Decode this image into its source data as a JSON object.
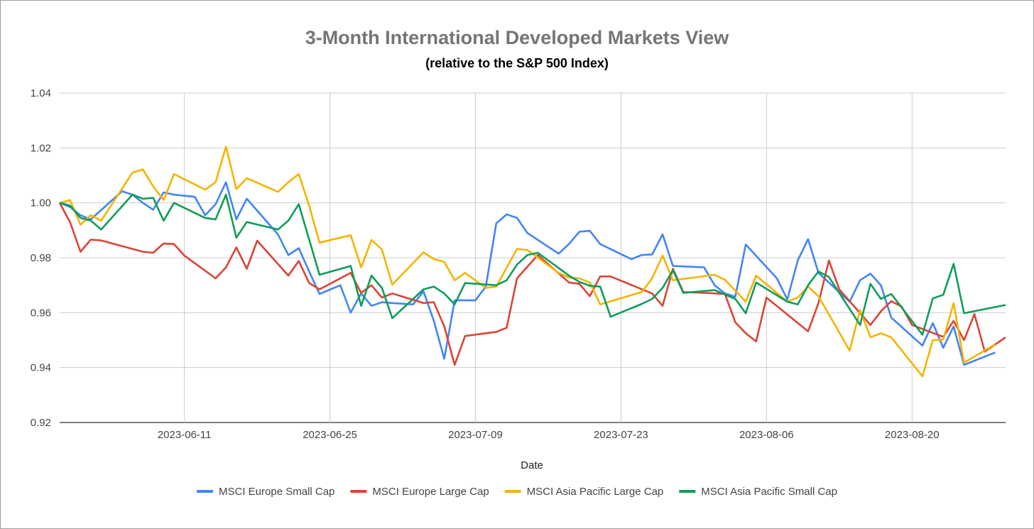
{
  "chart_data": {
    "type": "line",
    "title": "3-Month International Developed Markets View",
    "subtitle": "(relative to the S&P 500 Index)",
    "xlabel": "Date",
    "ylabel": "",
    "ylim": [
      0.92,
      1.04
    ],
    "y_ticks": [
      "0.92",
      "0.94",
      "0.96",
      "0.98",
      "1.00",
      "1.02",
      "1.04"
    ],
    "x_ticks": [
      "2023-06-11",
      "2023-06-25",
      "2023-07-09",
      "2023-07-23",
      "2023-08-06",
      "2023-08-20"
    ],
    "x_start": "2023-05-30",
    "x_end": "2023-08-29",
    "grid": true,
    "legend_position": "bottom",
    "colors": {
      "MSCI Europe Small Cap": "#4285f4",
      "MSCI Europe Large Cap": "#db4437",
      "MSCI Asia Pacific Large Cap": "#f4b400",
      "MSCI Asia Pacific Small Cap": "#0f9d58"
    },
    "series": [
      {
        "name": "MSCI Europe Small Cap",
        "points": [
          [
            "2023-05-30",
            1.0
          ],
          [
            "2023-05-31",
            0.9985
          ],
          [
            "2023-06-01",
            0.9955
          ],
          [
            "2023-06-02",
            0.994
          ],
          [
            "2023-06-05",
            1.0042
          ],
          [
            "2023-06-06",
            1.003
          ],
          [
            "2023-06-07",
            1.0
          ],
          [
            "2023-06-08",
            0.9975
          ],
          [
            "2023-06-09",
            1.0038
          ],
          [
            "2023-06-10",
            1.003
          ],
          [
            "2023-06-12",
            1.0022
          ],
          [
            "2023-06-13",
            0.9955
          ],
          [
            "2023-06-14",
            0.9995
          ],
          [
            "2023-06-15",
            1.0075
          ],
          [
            "2023-06-16",
            0.994
          ],
          [
            "2023-06-17",
            1.0015
          ],
          [
            "2023-06-20",
            0.9885
          ],
          [
            "2023-06-21",
            0.981
          ],
          [
            "2023-06-22",
            0.9835
          ],
          [
            "2023-06-23",
            0.975
          ],
          [
            "2023-06-24",
            0.9668
          ],
          [
            "2023-06-26",
            0.97
          ],
          [
            "2023-06-27",
            0.96
          ],
          [
            "2023-06-28",
            0.967
          ],
          [
            "2023-06-29",
            0.9625
          ],
          [
            "2023-06-30",
            0.9638
          ],
          [
            "2023-07-01",
            0.9635
          ],
          [
            "2023-07-03",
            0.963
          ],
          [
            "2023-07-04",
            0.9678
          ],
          [
            "2023-07-05",
            0.957
          ],
          [
            "2023-07-06",
            0.9432
          ],
          [
            "2023-07-07",
            0.9645
          ],
          [
            "2023-07-09",
            0.9645
          ],
          [
            "2023-07-10",
            0.9695
          ],
          [
            "2023-07-11",
            0.9925
          ],
          [
            "2023-07-12",
            0.9958
          ],
          [
            "2023-07-13",
            0.9945
          ],
          [
            "2023-07-14",
            0.989
          ],
          [
            "2023-07-17",
            0.9815
          ],
          [
            "2023-07-18",
            0.985
          ],
          [
            "2023-07-19",
            0.9895
          ],
          [
            "2023-07-20",
            0.9898
          ],
          [
            "2023-07-21",
            0.985
          ],
          [
            "2023-07-24",
            0.9795
          ],
          [
            "2023-07-25",
            0.981
          ],
          [
            "2023-07-26",
            0.9812
          ],
          [
            "2023-07-27",
            0.9885
          ],
          [
            "2023-07-28",
            0.977
          ],
          [
            "2023-07-31",
            0.9765
          ],
          [
            "2023-08-01",
            0.97
          ],
          [
            "2023-08-02",
            0.967
          ],
          [
            "2023-08-03",
            0.9658
          ],
          [
            "2023-08-04",
            0.9848
          ],
          [
            "2023-08-07",
            0.9725
          ],
          [
            "2023-08-08",
            0.9648
          ],
          [
            "2023-08-09",
            0.979
          ],
          [
            "2023-08-10",
            0.9868
          ],
          [
            "2023-08-11",
            0.9745
          ],
          [
            "2023-08-14",
            0.964
          ],
          [
            "2023-08-15",
            0.9718
          ],
          [
            "2023-08-16",
            0.9742
          ],
          [
            "2023-08-17",
            0.97
          ],
          [
            "2023-08-18",
            0.9582
          ],
          [
            "2023-08-21",
            0.948
          ],
          [
            "2023-08-22",
            0.9562
          ],
          [
            "2023-08-23",
            0.9472
          ],
          [
            "2023-08-24",
            0.955
          ],
          [
            "2023-08-25",
            0.941
          ],
          [
            "2023-08-28",
            0.9455
          ]
        ]
      },
      {
        "name": "MSCI Europe Large Cap",
        "points": [
          [
            "2023-05-30",
            1.0
          ],
          [
            "2023-05-31",
            0.993
          ],
          [
            "2023-06-01",
            0.9822
          ],
          [
            "2023-06-02",
            0.9866
          ],
          [
            "2023-06-03",
            0.9863
          ],
          [
            "2023-06-07",
            0.9822
          ],
          [
            "2023-06-08",
            0.9818
          ],
          [
            "2023-06-09",
            0.9852
          ],
          [
            "2023-06-10",
            0.985
          ],
          [
            "2023-06-11",
            0.9808
          ],
          [
            "2023-06-14",
            0.9725
          ],
          [
            "2023-06-15",
            0.9765
          ],
          [
            "2023-06-16",
            0.9838
          ],
          [
            "2023-06-17",
            0.976
          ],
          [
            "2023-06-18",
            0.9862
          ],
          [
            "2023-06-21",
            0.9735
          ],
          [
            "2023-06-22",
            0.9788
          ],
          [
            "2023-06-23",
            0.9708
          ],
          [
            "2023-06-24",
            0.9685
          ],
          [
            "2023-06-27",
            0.9745
          ],
          [
            "2023-06-28",
            0.9672
          ],
          [
            "2023-06-29",
            0.97
          ],
          [
            "2023-06-30",
            0.9655
          ],
          [
            "2023-07-01",
            0.967
          ],
          [
            "2023-07-04",
            0.9635
          ],
          [
            "2023-07-05",
            0.9638
          ],
          [
            "2023-07-06",
            0.955
          ],
          [
            "2023-07-07",
            0.941
          ],
          [
            "2023-07-08",
            0.9515
          ],
          [
            "2023-07-11",
            0.953
          ],
          [
            "2023-07-12",
            0.9545
          ],
          [
            "2023-07-13",
            0.9725
          ],
          [
            "2023-07-15",
            0.981
          ],
          [
            "2023-07-18",
            0.971
          ],
          [
            "2023-07-19",
            0.9705
          ],
          [
            "2023-07-20",
            0.966
          ],
          [
            "2023-07-21",
            0.9732
          ],
          [
            "2023-07-22",
            0.9732
          ],
          [
            "2023-07-26",
            0.967
          ],
          [
            "2023-07-27",
            0.9625
          ],
          [
            "2023-07-28",
            0.976
          ],
          [
            "2023-07-29",
            0.9675
          ],
          [
            "2023-07-31",
            0.9672
          ],
          [
            "2023-08-02",
            0.9668
          ],
          [
            "2023-08-03",
            0.9565
          ],
          [
            "2023-08-04",
            0.9525
          ],
          [
            "2023-08-05",
            0.9495
          ],
          [
            "2023-08-06",
            0.9655
          ],
          [
            "2023-08-10",
            0.9532
          ],
          [
            "2023-08-11",
            0.9635
          ],
          [
            "2023-08-12",
            0.979
          ],
          [
            "2023-08-13",
            0.9685
          ],
          [
            "2023-08-16",
            0.9555
          ],
          [
            "2023-08-17",
            0.9605
          ],
          [
            "2023-08-18",
            0.9642
          ],
          [
            "2023-08-19",
            0.9622
          ],
          [
            "2023-08-20",
            0.9555
          ],
          [
            "2023-08-23",
            0.9512
          ],
          [
            "2023-08-24",
            0.957
          ],
          [
            "2023-08-25",
            0.95
          ],
          [
            "2023-08-26",
            0.9595
          ],
          [
            "2023-08-27",
            0.9458
          ],
          [
            "2023-08-29",
            0.951
          ]
        ]
      },
      {
        "name": "MSCI Asia Pacific Large Cap",
        "points": [
          [
            "2023-05-30",
            1.0
          ],
          [
            "2023-05-31",
            1.001
          ],
          [
            "2023-06-01",
            0.992
          ],
          [
            "2023-06-02",
            0.9955
          ],
          [
            "2023-06-03",
            0.9935
          ],
          [
            "2023-06-06",
            1.011
          ],
          [
            "2023-06-07",
            1.0122
          ],
          [
            "2023-06-08",
            1.006
          ],
          [
            "2023-06-09",
            1.001
          ],
          [
            "2023-06-10",
            1.0105
          ],
          [
            "2023-06-13",
            1.0048
          ],
          [
            "2023-06-14",
            1.0075
          ],
          [
            "2023-06-15",
            1.0205
          ],
          [
            "2023-06-16",
            1.005
          ],
          [
            "2023-06-17",
            1.009
          ],
          [
            "2023-06-20",
            1.004
          ],
          [
            "2023-06-21",
            1.0075
          ],
          [
            "2023-06-22",
            1.0105
          ],
          [
            "2023-06-23",
            0.999
          ],
          [
            "2023-06-24",
            0.9855
          ],
          [
            "2023-06-27",
            0.9882
          ],
          [
            "2023-06-28",
            0.9765
          ],
          [
            "2023-06-29",
            0.9865
          ],
          [
            "2023-06-30",
            0.983
          ],
          [
            "2023-07-01",
            0.9702
          ],
          [
            "2023-07-04",
            0.982
          ],
          [
            "2023-07-05",
            0.9795
          ],
          [
            "2023-07-06",
            0.9785
          ],
          [
            "2023-07-07",
            0.9718
          ],
          [
            "2023-07-08",
            0.9745
          ],
          [
            "2023-07-10",
            0.969
          ],
          [
            "2023-07-11",
            0.9695
          ],
          [
            "2023-07-13",
            0.9832
          ],
          [
            "2023-07-14",
            0.9828
          ],
          [
            "2023-07-17",
            0.9745
          ],
          [
            "2023-07-18",
            0.9728
          ],
          [
            "2023-07-19",
            0.9725
          ],
          [
            "2023-07-20",
            0.971
          ],
          [
            "2023-07-21",
            0.963
          ],
          [
            "2023-07-25",
            0.9675
          ],
          [
            "2023-07-26",
            0.9725
          ],
          [
            "2023-07-27",
            0.9808
          ],
          [
            "2023-07-28",
            0.9718
          ],
          [
            "2023-08-01",
            0.9738
          ],
          [
            "2023-08-02",
            0.972
          ],
          [
            "2023-08-04",
            0.964
          ],
          [
            "2023-08-05",
            0.9735
          ],
          [
            "2023-08-08",
            0.964
          ],
          [
            "2023-08-09",
            0.9655
          ],
          [
            "2023-08-10",
            0.9695
          ],
          [
            "2023-08-11",
            0.966
          ],
          [
            "2023-08-14",
            0.9462
          ],
          [
            "2023-08-15",
            0.961
          ],
          [
            "2023-08-16",
            0.951
          ],
          [
            "2023-08-17",
            0.9525
          ],
          [
            "2023-08-18",
            0.951
          ],
          [
            "2023-08-21",
            0.9368
          ],
          [
            "2023-08-22",
            0.95
          ],
          [
            "2023-08-23",
            0.9502
          ],
          [
            "2023-08-24",
            0.9635
          ],
          [
            "2023-08-25",
            0.9418
          ],
          [
            "2023-08-28",
            0.9485
          ]
        ]
      },
      {
        "name": "MSCI Asia Pacific Small Cap",
        "points": [
          [
            "2023-05-30",
            1.0
          ],
          [
            "2023-05-31",
            0.999
          ],
          [
            "2023-06-01",
            0.9945
          ],
          [
            "2023-06-02",
            0.9935
          ],
          [
            "2023-06-03",
            0.9903
          ],
          [
            "2023-06-06",
            1.003
          ],
          [
            "2023-06-07",
            1.0015
          ],
          [
            "2023-06-08",
            1.0018
          ],
          [
            "2023-06-09",
            0.9935
          ],
          [
            "2023-06-10",
            1.0
          ],
          [
            "2023-06-13",
            0.9945
          ],
          [
            "2023-06-14",
            0.994
          ],
          [
            "2023-06-15",
            1.003
          ],
          [
            "2023-06-16",
            0.9873
          ],
          [
            "2023-06-17",
            0.993
          ],
          [
            "2023-06-20",
            0.9903
          ],
          [
            "2023-06-21",
            0.9935
          ],
          [
            "2023-06-22",
            0.9995
          ],
          [
            "2023-06-24",
            0.9738
          ],
          [
            "2023-06-27",
            0.977
          ],
          [
            "2023-06-28",
            0.9625
          ],
          [
            "2023-06-29",
            0.9735
          ],
          [
            "2023-06-30",
            0.969
          ],
          [
            "2023-07-01",
            0.958
          ],
          [
            "2023-07-04",
            0.9685
          ],
          [
            "2023-07-05",
            0.9695
          ],
          [
            "2023-07-06",
            0.967
          ],
          [
            "2023-07-07",
            0.963
          ],
          [
            "2023-07-08",
            0.9708
          ],
          [
            "2023-07-11",
            0.97
          ],
          [
            "2023-07-12",
            0.9718
          ],
          [
            "2023-07-13",
            0.9775
          ],
          [
            "2023-07-14",
            0.981
          ],
          [
            "2023-07-15",
            0.9818
          ],
          [
            "2023-07-18",
            0.9735
          ],
          [
            "2023-07-19",
            0.9712
          ],
          [
            "2023-07-20",
            0.9698
          ],
          [
            "2023-07-21",
            0.9695
          ],
          [
            "2023-07-22",
            0.9585
          ],
          [
            "2023-07-25",
            0.9632
          ],
          [
            "2023-07-26",
            0.965
          ],
          [
            "2023-07-27",
            0.969
          ],
          [
            "2023-07-28",
            0.9755
          ],
          [
            "2023-07-29",
            0.9672
          ],
          [
            "2023-08-01",
            0.9682
          ],
          [
            "2023-08-03",
            0.965
          ],
          [
            "2023-08-04",
            0.9598
          ],
          [
            "2023-08-05",
            0.971
          ],
          [
            "2023-08-08",
            0.964
          ],
          [
            "2023-08-09",
            0.963
          ],
          [
            "2023-08-10",
            0.97
          ],
          [
            "2023-08-11",
            0.975
          ],
          [
            "2023-08-12",
            0.973
          ],
          [
            "2023-08-15",
            0.9555
          ],
          [
            "2023-08-16",
            0.9705
          ],
          [
            "2023-08-17",
            0.965
          ],
          [
            "2023-08-18",
            0.9668
          ],
          [
            "2023-08-21",
            0.952
          ],
          [
            "2023-08-22",
            0.9652
          ],
          [
            "2023-08-23",
            0.9665
          ],
          [
            "2023-08-24",
            0.9778
          ],
          [
            "2023-08-25",
            0.9598
          ],
          [
            "2023-08-29",
            0.9628
          ]
        ]
      }
    ]
  }
}
